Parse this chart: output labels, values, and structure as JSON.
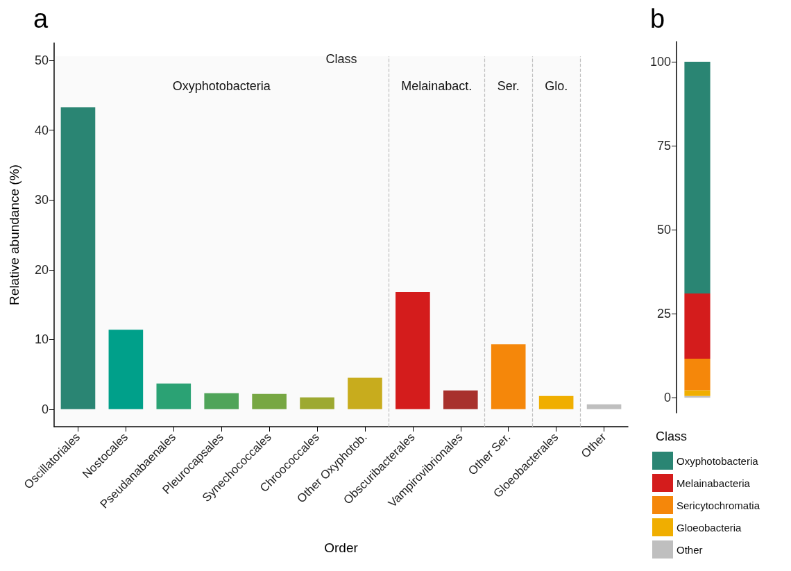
{
  "chart_data": [
    {
      "type": "bar",
      "title": "a",
      "xlabel": "Order",
      "ylabel": "Relative abundance (%)",
      "categories": [
        "Oscillatoriales",
        "Nostocales",
        "Pseudanabaenales",
        "Pleurocapsales",
        "Synechococcales",
        "Chroococcales",
        "Other Oxyphotob.",
        "Obscuribacterales",
        "Vampirovibrionales",
        "Other Ser.",
        "Gloeobacterales",
        "Other"
      ],
      "values": [
        43.3,
        11.4,
        3.7,
        2.3,
        2.2,
        1.7,
        4.5,
        16.8,
        2.7,
        9.3,
        1.9,
        0.7
      ],
      "colors": [
        "#2a8573",
        "#00a08a",
        "#2ba274",
        "#4fa459",
        "#77a743",
        "#9da931",
        "#c8ac1d",
        "#d41c1c",
        "#a8312d",
        "#f5870a",
        "#f0ae00",
        "#bfbfbf"
      ],
      "ylim": [
        -2.5,
        52.5
      ],
      "yticks": [
        0,
        10,
        20,
        30,
        40,
        50
      ],
      "grid": false,
      "legend": false,
      "annotations": [
        "Class"
      ],
      "bands": [
        {
          "axis": "x",
          "from": "Oscillatoriales",
          "to": "Other Oxyphotob.",
          "label": "Oxyphotobacteria",
          "color": "#bfbfbf"
        },
        {
          "axis": "x",
          "from": "Obscuribacterales",
          "to": "Vampirovibrionales",
          "label": "Melainabact.",
          "color": "#bfbfbf"
        },
        {
          "axis": "x",
          "from": "Other Ser.",
          "to": "Other Ser.",
          "label": "Ser.",
          "color": "#bfbfbf"
        },
        {
          "axis": "x",
          "from": "Gloeobacterales",
          "to": "Gloeobacterales",
          "label": "Glo.",
          "color": "#bfbfbf"
        }
      ]
    },
    {
      "type": "bar",
      "title": "b",
      "stacked": true,
      "legend": "bottom",
      "legend_title": "Class",
      "tick_labels": "y",
      "grid": false,
      "categories": [
        null
      ],
      "ylim": [
        -4.5,
        106
      ],
      "yticks": [
        0,
        25,
        50,
        75,
        100
      ],
      "series": [
        {
          "name": "Other",
          "color": "#bfbfbf",
          "values": [
            0.5
          ]
        },
        {
          "name": "Gloeobacteria",
          "color": "#f0ae00",
          "values": [
            1.7
          ]
        },
        {
          "name": "Sericytochromatia",
          "color": "#f5870a",
          "values": [
            9.4
          ]
        },
        {
          "name": "Melainabacteria",
          "color": "#d41c1c",
          "values": [
            19.4
          ]
        },
        {
          "name": "Oxyphotobacteria",
          "color": "#2a8573",
          "values": [
            69.0
          ]
        }
      ]
    }
  ]
}
